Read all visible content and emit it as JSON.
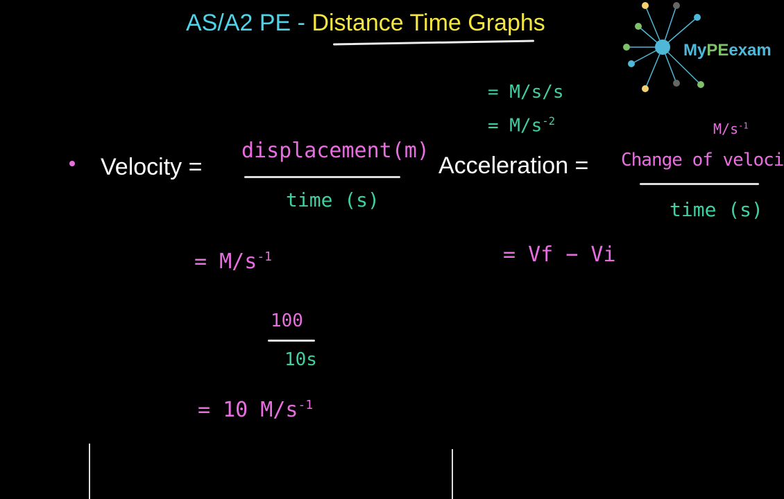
{
  "header": {
    "title_part1": "AS/A2 PE",
    "separator": "-",
    "title_part2": "Distance Time Graphs"
  },
  "logo": {
    "text_1": "My",
    "text_2": "PE",
    "text_3": "exam"
  },
  "velocity": {
    "label": "Velocity =",
    "numerator": "displacement(m)",
    "denominator": "time (s)",
    "unit": "= M/s",
    "unit_exp": "-1",
    "example_numerator": "100",
    "example_denominator": "10s",
    "result": "= 10 M/s",
    "result_exp": "-1"
  },
  "acceleration": {
    "label": "Acceleration =",
    "numerator_unit": "M/s",
    "numerator_unit_exp": "-1",
    "numerator": "Change of velocity",
    "denominator": "time (s)",
    "formula": "= Vf − Vi",
    "unit_1": "= M/s/s",
    "unit_2": "= M/s",
    "unit_2_exp": "-2"
  }
}
